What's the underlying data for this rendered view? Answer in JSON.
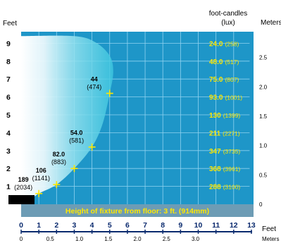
{
  "chart_data": {
    "type": "area",
    "title": "",
    "caption": "Height of fixture from floor: 3 ft. (914mm)",
    "left_axis_label": "Feet",
    "left_ticks": [
      "1",
      "2",
      "3",
      "4",
      "5",
      "6",
      "7",
      "8",
      "9"
    ],
    "fc_header": "foot-candles",
    "lux_header": "(lux)",
    "right_axis_label": "Meters",
    "right_ticks": [
      "0",
      "0.5",
      "1.0",
      "1.5",
      "2.0",
      "2.5"
    ],
    "bottom_feet_label": "Feet",
    "bottom_feet_ticks": [
      "0",
      "1",
      "2",
      "3",
      "4",
      "5",
      "6",
      "7",
      "8",
      "9",
      "10",
      "11",
      "12",
      "13"
    ],
    "bottom_meters_label": "Meters",
    "bottom_meters_ticks": [
      "0",
      "0.5",
      "1.0",
      "1.5",
      "2.0",
      "2.5",
      "3.0"
    ],
    "xlim": [
      0,
      13
    ],
    "ylim": [
      0,
      9.5
    ],
    "illuminance_by_height": [
      {
        "height_ft": 9,
        "fc": "24.0",
        "lux": "(258)"
      },
      {
        "height_ft": 8,
        "fc": "48.0",
        "lux": "(517)"
      },
      {
        "height_ft": 7,
        "fc": "75.0",
        "lux": "(807)"
      },
      {
        "height_ft": 6,
        "fc": "93.0",
        "lux": "(1001)"
      },
      {
        "height_ft": 5,
        "fc": "130",
        "lux": "(1399)"
      },
      {
        "height_ft": 4,
        "fc": "211",
        "lux": "(2271)"
      },
      {
        "height_ft": 3,
        "fc": "347",
        "lux": "(3735)"
      },
      {
        "height_ft": 2,
        "fc": "368",
        "lux": "(3961)"
      },
      {
        "height_ft": 1,
        "fc": "288",
        "lux": "(3100)"
      }
    ],
    "measurement_points": [
      {
        "x": 1.0,
        "y": 0.6,
        "fc": "189",
        "lux": "(2034)"
      },
      {
        "x": 2.0,
        "y": 1.1,
        "fc": "106",
        "lux": "(1141)"
      },
      {
        "x": 3.0,
        "y": 2.0,
        "fc": "82.0",
        "lux": "(883)"
      },
      {
        "x": 4.0,
        "y": 3.2,
        "fc": "54.0",
        "lux": "(581)"
      },
      {
        "x": 5.0,
        "y": 6.2,
        "fc": "44",
        "lux": "(474)"
      }
    ],
    "beam_edge": [
      [
        0.45,
        0.2
      ],
      [
        1.0,
        0.6
      ],
      [
        2.0,
        1.1
      ],
      [
        3.0,
        2.0
      ],
      [
        4.0,
        3.2
      ],
      [
        4.6,
        4.5
      ],
      [
        5.0,
        6.2
      ],
      [
        5.2,
        7.4
      ],
      [
        5.0,
        8.3
      ],
      [
        4.2,
        9.05
      ],
      [
        3.0,
        9.4
      ],
      [
        0,
        9.4
      ]
    ],
    "colors": {
      "background": "#1e96c8",
      "gradient_light": "#ffffff",
      "gridline": "#8fd2f0",
      "value_text": "#ffe800",
      "marker": "#ffe800",
      "caption_bar": "#6d9cb5",
      "caption_text": "#ffe800",
      "fixture": "#000000",
      "axis_text": "#0a2a6e"
    }
  }
}
